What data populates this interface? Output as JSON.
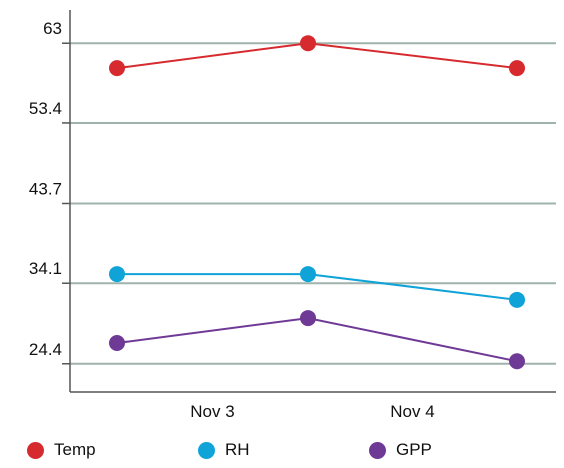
{
  "chart_data": {
    "type": "line",
    "title": "",
    "xlabel": "",
    "ylabel": "",
    "x_tick_labels": [
      "Nov 3",
      "Nov 4"
    ],
    "y_tick_labels": [
      "63",
      "53.4",
      "43.7",
      "34.1",
      "24.4"
    ],
    "ylim": [
      21,
      67
    ],
    "grid": true,
    "legend_placement": "bottom",
    "series": [
      {
        "name": "Temp",
        "color": "#d62a2e",
        "values": [
          60,
          63,
          60
        ]
      },
      {
        "name": "RH",
        "color": "#0fa3d8",
        "values": [
          35.2,
          35.2,
          32.1
        ]
      },
      {
        "name": "GPP",
        "color": "#6f3a96",
        "values": [
          26.9,
          29.9,
          24.7
        ]
      }
    ]
  }
}
